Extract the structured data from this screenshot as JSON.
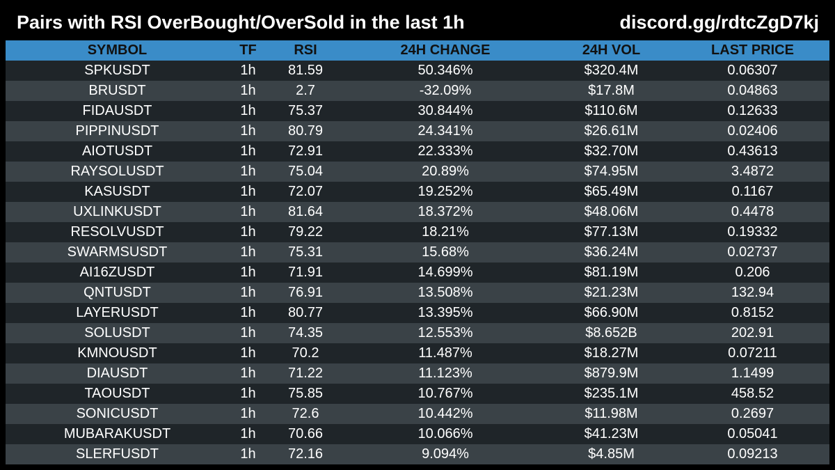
{
  "header": {
    "title": "Pairs with RSI OverBought/OverSold in the last 1h",
    "link": "discord.gg/rdtcZgD7kj"
  },
  "table": {
    "columns": [
      "SYMBOL",
      "TF",
      "RSI",
      "24H CHANGE",
      "24H VOL",
      "LAST PRICE"
    ],
    "rows": [
      [
        "SPKUSDT",
        "1h",
        "81.59",
        "50.346%",
        "$320.4M",
        "0.06307"
      ],
      [
        "BRUSDT",
        "1h",
        "2.7",
        "-32.09%",
        "$17.8M",
        "0.04863"
      ],
      [
        "FIDAUSDT",
        "1h",
        "75.37",
        "30.844%",
        "$110.6M",
        "0.12633"
      ],
      [
        "PIPPINUSDT",
        "1h",
        "80.79",
        "24.341%",
        "$26.61M",
        "0.02406"
      ],
      [
        "AIOTUSDT",
        "1h",
        "72.91",
        "22.333%",
        "$32.70M",
        "0.43613"
      ],
      [
        "RAYSOLUSDT",
        "1h",
        "75.04",
        "20.89%",
        "$74.95M",
        "3.4872"
      ],
      [
        "KASUSDT",
        "1h",
        "72.07",
        "19.252%",
        "$65.49M",
        "0.1167"
      ],
      [
        "UXLINKUSDT",
        "1h",
        "81.64",
        "18.372%",
        "$48.06M",
        "0.4478"
      ],
      [
        "RESOLVUSDT",
        "1h",
        "79.22",
        "18.21%",
        "$77.13M",
        "0.19332"
      ],
      [
        "SWARMSUSDT",
        "1h",
        "75.31",
        "15.68%",
        "$36.24M",
        "0.02737"
      ],
      [
        "AI16ZUSDT",
        "1h",
        "71.91",
        "14.699%",
        "$81.19M",
        "0.206"
      ],
      [
        "QNTUSDT",
        "1h",
        "76.91",
        "13.508%",
        "$21.23M",
        "132.94"
      ],
      [
        "LAYERUSDT",
        "1h",
        "80.77",
        "13.395%",
        "$66.90M",
        "0.8152"
      ],
      [
        "SOLUSDT",
        "1h",
        "74.35",
        "12.553%",
        "$8.652B",
        "202.91"
      ],
      [
        "KMNOUSDT",
        "1h",
        "70.2",
        "11.487%",
        "$18.27M",
        "0.07211"
      ],
      [
        "DIAUSDT",
        "1h",
        "71.22",
        "11.123%",
        "$879.9M",
        "1.1499"
      ],
      [
        "TAOUSDT",
        "1h",
        "75.85",
        "10.767%",
        "$235.1M",
        "458.52"
      ],
      [
        "SONICUSDT",
        "1h",
        "72.6",
        "10.442%",
        "$11.98M",
        "0.2697"
      ],
      [
        "MUBARAKUSDT",
        "1h",
        "70.66",
        "10.066%",
        "$41.23M",
        "0.05041"
      ],
      [
        "SLERFUSDT",
        "1h",
        "72.16",
        "9.094%",
        "$4.85M",
        "0.09213"
      ]
    ]
  },
  "colors": {
    "background": "#000000",
    "header_row": "#3a8cc8",
    "row_dark": "#1f2529",
    "row_light": "#3a4247",
    "text": "#ffffff"
  }
}
